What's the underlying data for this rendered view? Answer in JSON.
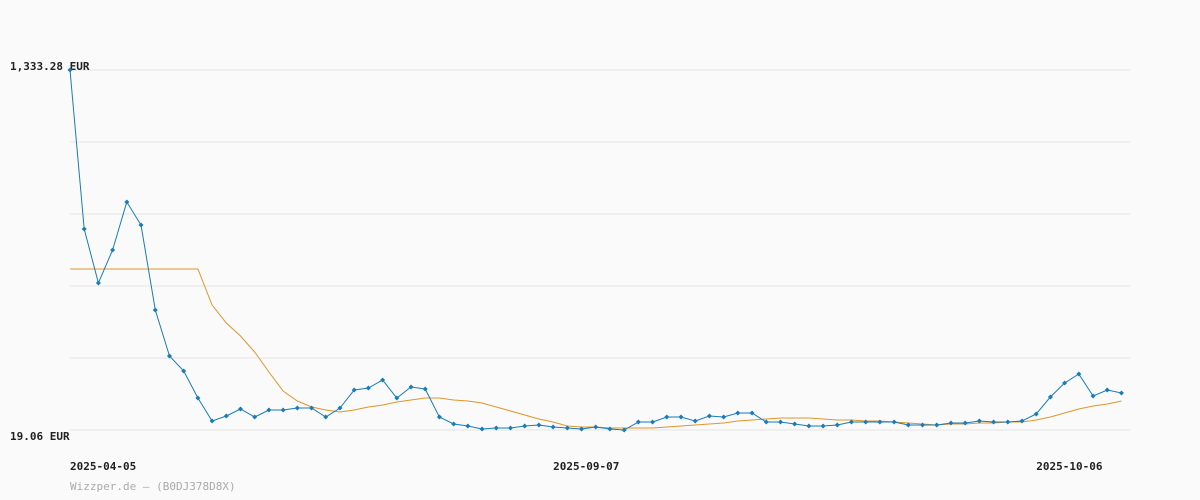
{
  "chart_data": {
    "type": "line",
    "categories": [
      "2025-04-05",
      null,
      null,
      null,
      null,
      null,
      null,
      null,
      null,
      null,
      null,
      null,
      null,
      null,
      null,
      null,
      null,
      null,
      null,
      null,
      null,
      null,
      null,
      null,
      null,
      null,
      null,
      null,
      null,
      null,
      null,
      null,
      null,
      null,
      "2025-09-07",
      null,
      null,
      null,
      null,
      null,
      null,
      null,
      null,
      null,
      null,
      null,
      null,
      null,
      null,
      null,
      null,
      null,
      null,
      null,
      null,
      null,
      null,
      null,
      null,
      null,
      null,
      null,
      null,
      null,
      null,
      null,
      null,
      null,
      "2025-10-06",
      null,
      null,
      null,
      null,
      null,
      null
    ],
    "series": [
      {
        "color": "#1a7bb9",
        "markers": true,
        "values": [
          1333.28,
          752.8,
          555.7,
          676.2,
          851.4,
          767.4,
          457.1,
          289.2,
          234.4,
          135.9,
          51.9,
          70.2,
          95.7,
          66.5,
          92.1,
          92.1,
          99.4,
          99.4,
          66.5,
          99.4,
          165.1,
          172.4,
          201.6,
          135.9,
          176.0,
          168.7,
          66.5,
          41.0,
          33.7,
          22.7,
          26.4,
          26.4,
          33.7,
          37.3,
          30.0,
          26.4,
          22.7,
          30.0,
          22.7,
          19.06,
          48.3,
          48.3,
          66.5,
          66.5,
          51.9,
          70.2,
          66.5,
          81.1,
          81.1,
          48.3,
          48.3,
          41.0,
          33.7,
          33.7,
          37.3,
          48.3,
          48.3,
          48.3,
          48.3,
          37.3,
          37.3,
          37.3,
          44.6,
          44.6,
          51.9,
          48.3,
          48.3,
          51.9,
          77.5,
          139.5,
          190.6,
          223.5,
          143.2,
          165.1,
          154.1
        ]
      },
      {
        "color": "#e0952b",
        "markers": false,
        "values": [
          606.8,
          606.8,
          606.8,
          606.8,
          606.8,
          606.8,
          606.8,
          606.8,
          606.8,
          606.8,
          475.4,
          409.7,
          362.2,
          303.8,
          230.8,
          161.4,
          124.9,
          103.0,
          92.1,
          84.8,
          92.1,
          103.0,
          110.3,
          121.3,
          128.6,
          135.9,
          135.9,
          128.6,
          124.9,
          117.6,
          103.0,
          88.4,
          73.8,
          59.2,
          48.3,
          33.7,
          30.0,
          30.0,
          26.4,
          26.4,
          26.4,
          26.4,
          30.0,
          33.7,
          37.3,
          41.0,
          44.6,
          51.9,
          55.6,
          59.2,
          62.9,
          62.9,
          62.9,
          59.2,
          55.6,
          55.6,
          51.9,
          51.9,
          48.3,
          44.6,
          41.0,
          37.3,
          41.0,
          41.0,
          44.6,
          44.6,
          48.3,
          48.3,
          55.6,
          66.5,
          81.1,
          95.7,
          106.7,
          114.0,
          124.9
        ]
      }
    ],
    "ylim": [
      19.06,
      1333.28
    ],
    "yticks": [
      {
        "value": 19.06,
        "label": "19.06 EUR"
      },
      {
        "value": 1333.28,
        "label": "1,333.28 EUR"
      }
    ],
    "ygrid": [
      19.06,
      281.9,
      544.8,
      807.6,
      1070.4,
      1333.28
    ],
    "grid": true,
    "footer": "Wizzper.de – (B0DJ378D8X)"
  }
}
